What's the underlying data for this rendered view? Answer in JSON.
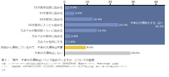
{
  "chart_data": {
    "type": "bar",
    "orientation": "horizontal",
    "title": "表１：「例年、年末の大掃除はいつごろ始めていますか」についての図表",
    "categories": [
      "11月前半以前に始める",
      "11月後半に始める",
      "12月前半に始める",
      "12月後半に入ったら始める",
      "大みそかの数日前くらいに始める",
      "大みそかの前日に始める",
      "大みそか当日にする",
      "日頃から掃除しているので、年末の大掃除は不要",
      "年末の大掃除はしない"
    ],
    "values": [
      2.3,
      4.5,
      12.5,
      23.7,
      14.3,
      2.8,
      1.6,
      9.5,
      29.0
    ],
    "value_labels": [
      "2.3%",
      "4.5%",
      "12.5%",
      "23.7%",
      "14.3%",
      "2.8%",
      "1.6%",
      "9.5%",
      "29.0%"
    ],
    "data_labels": true,
    "colors": [
      "#7a8fbf",
      "#7a8fbf",
      "#7a8fbf",
      "#7a8fbf",
      "#7a8fbf",
      "#7a8fbf",
      "#7a8fbf",
      "#e8c840",
      "#c8c8c8"
    ],
    "xlim": [
      0,
      44
    ],
    "xticks": [
      0,
      10,
      20,
      30,
      40
    ],
    "grid": false,
    "annotations": [
      {
        "text": "年末の大掃除をする（計）\n61.5%",
        "color": "#5a6f9a",
        "categories": [
          "11月前半以前に始める",
          "大みそか当日にする"
        ]
      }
    ],
    "footnote": [
      "出典：インターワイヤード株式会社が運営するネットリサーチ「DIMSDRIVE」実施のアンケート「年末の大掃除・お掃除",
      "シート」、調査期間：2015年11月13日～11月25日、DIMSDRIVEモニター 4,173名が回答、表２～表７の出典も同アンケート",
      "です。"
    ]
  }
}
